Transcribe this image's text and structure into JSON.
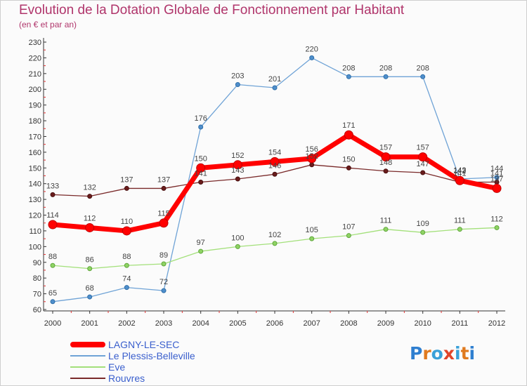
{
  "header": {
    "title": "Evolution de la Dotation Globale de Fonctionnement par Habitant",
    "subtitle": "(en € et par an)"
  },
  "brand": {
    "logo_text": "Proxiti"
  },
  "chart_data": {
    "type": "line",
    "title": "Evolution de la Dotation Globale de Fonctionnement par Habitant",
    "subtitle": "(en € et par an)",
    "xlabel": "",
    "ylabel": "",
    "x": [
      "2000",
      "2001",
      "2002",
      "2003",
      "2004",
      "2005",
      "2006",
      "2007",
      "2008",
      "2009",
      "2010",
      "2011",
      "2012"
    ],
    "ylim": [
      60,
      230
    ],
    "yticks": [
      60,
      70,
      80,
      90,
      100,
      110,
      120,
      130,
      140,
      150,
      160,
      170,
      180,
      190,
      200,
      210,
      220,
      230
    ],
    "grid": false,
    "legend_position": "bottom-left",
    "series": [
      {
        "name": "LAGNY-LE-SEC",
        "color": "#ff0000",
        "values": [
          114,
          112,
          110,
          115,
          150,
          152,
          154,
          156,
          171,
          157,
          157,
          142,
          137
        ]
      },
      {
        "name": "Le Plessis-Belleville",
        "color": "#6fa3d6",
        "values": [
          65,
          68,
          74,
          72,
          176,
          203,
          201,
          220,
          208,
          208,
          208,
          143,
          144
        ]
      },
      {
        "name": "Eve",
        "color": "#a3e07a",
        "values": [
          88,
          86,
          88,
          89,
          97,
          100,
          102,
          105,
          107,
          111,
          109,
          111,
          112
        ]
      },
      {
        "name": "Rouvres",
        "color": "#7a2a2a",
        "values": [
          133,
          132,
          137,
          137,
          141,
          143,
          146,
          152,
          150,
          148,
          147,
          141,
          141
        ]
      }
    ]
  }
}
